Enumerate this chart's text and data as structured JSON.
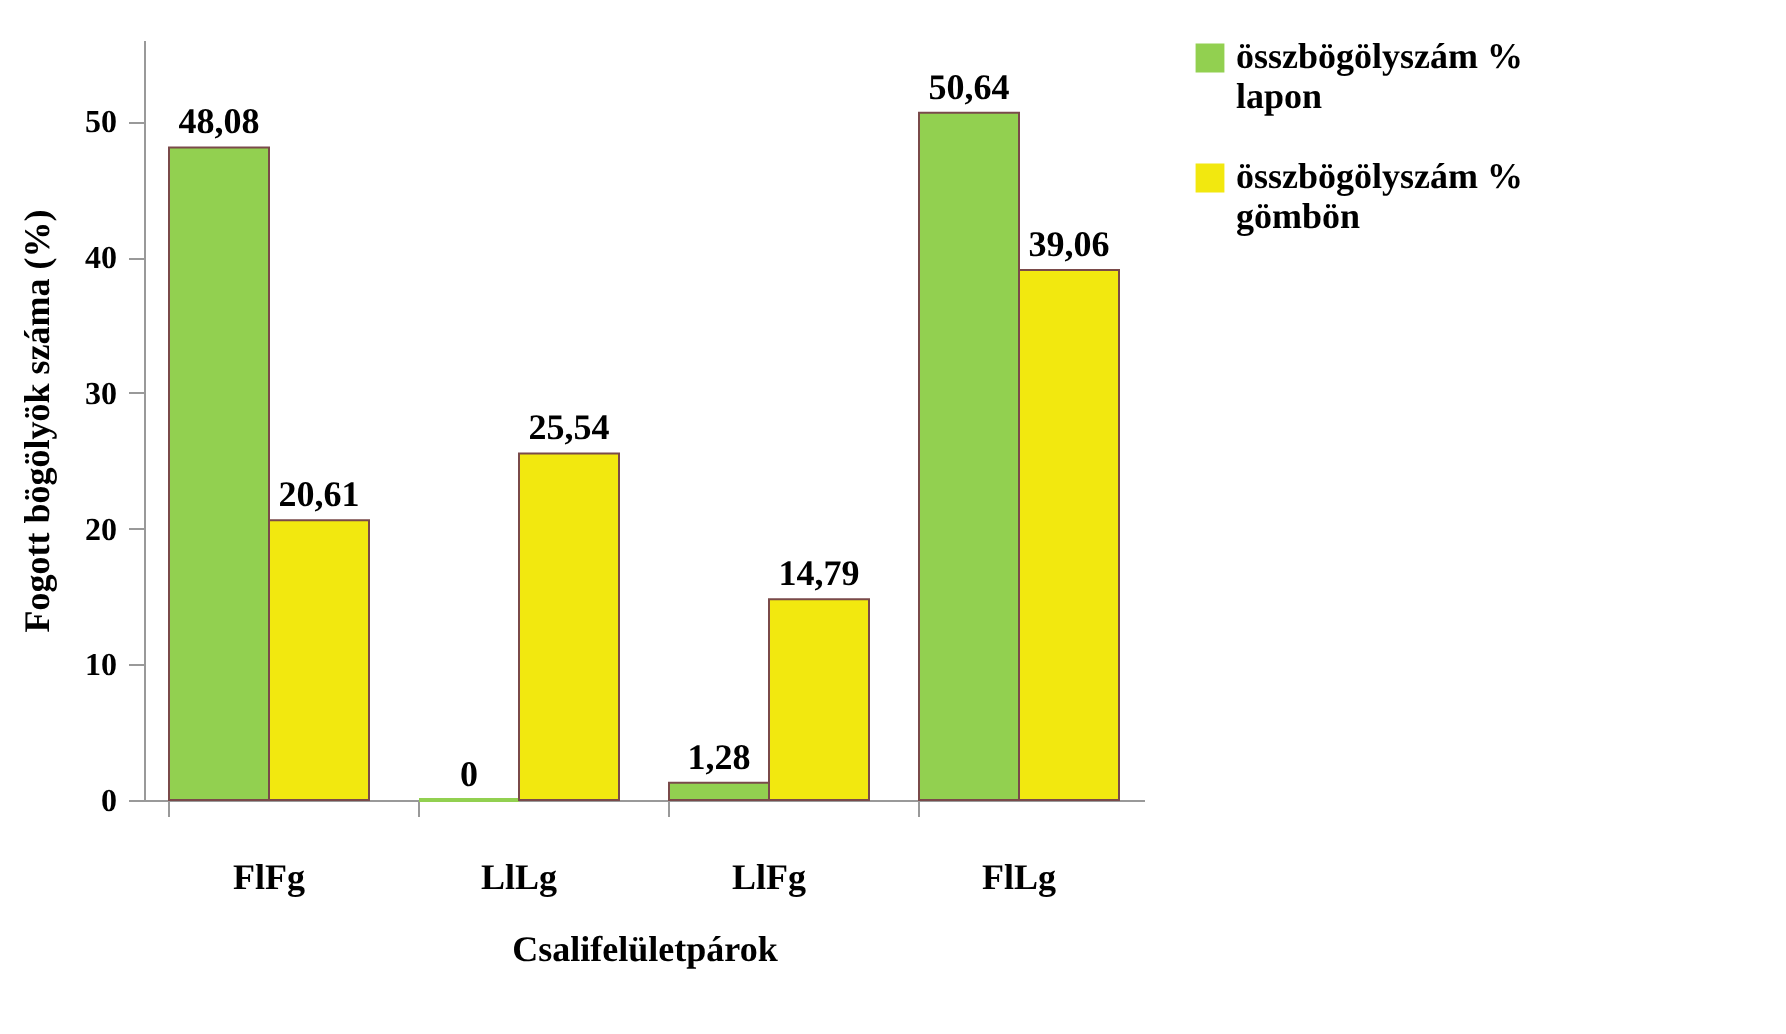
{
  "chart_data": {
    "type": "bar",
    "xlabel": "Csalifelületpárok",
    "ylabel": "Fogott bögölyök száma (%)",
    "categories": [
      "FlFg",
      "LlLg",
      "LlFg",
      "FlLg"
    ],
    "series": [
      {
        "name": "összbögölyszám % lapon",
        "color": "#92d050",
        "values": [
          48.08,
          0,
          1.28,
          50.64
        ],
        "value_labels": [
          "48,08",
          "0",
          "1,28",
          "50,64"
        ]
      },
      {
        "name": "összbögölyszám % gömbön",
        "color": "#f2e80f",
        "values": [
          20.61,
          25.54,
          14.79,
          39.06
        ],
        "value_labels": [
          "20,61",
          "25,54",
          "14,79",
          "39,06"
        ]
      }
    ],
    "ylim": [
      0,
      56
    ],
    "yticks": [
      0,
      10,
      20,
      30,
      40,
      50
    ],
    "grid": false,
    "legend": "right"
  }
}
